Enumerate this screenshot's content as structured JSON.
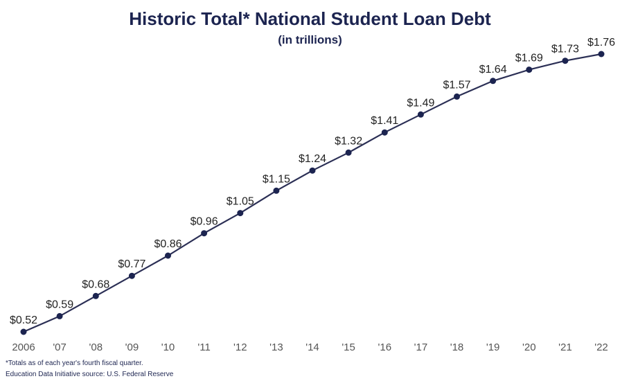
{
  "chart_data": {
    "type": "line",
    "title": "Historic Total* National Student Loan Debt",
    "subtitle": "(in trillions)",
    "categories": [
      "2006",
      "'07",
      "'08",
      "'09",
      "'10",
      "'11",
      "'12",
      "'13",
      "'14",
      "'15",
      "'16",
      "'17",
      "'18",
      "'19",
      "'20",
      "'21",
      "'22"
    ],
    "series": [
      {
        "values": [
          0.52,
          0.59,
          0.68,
          0.77,
          0.86,
          0.96,
          1.05,
          1.15,
          1.24,
          1.32,
          1.41,
          1.49,
          1.57,
          1.64,
          1.69,
          1.73,
          1.76
        ]
      }
    ],
    "data_labels": [
      "$0.52",
      "$0.59",
      "$0.68",
      "$0.77",
      "$0.86",
      "$0.96",
      "$1.05",
      "$1.15",
      "$1.24",
      "$1.32",
      "$1.41",
      "$1.49",
      "$1.57",
      "$1.64",
      "$1.69",
      "$1.73",
      "$1.76"
    ],
    "ylim": [
      0.52,
      1.76
    ],
    "grid": false,
    "legend": "none",
    "line_color": "#2b2f55",
    "marker_color": "#1c2450",
    "title_color": "#1c2450"
  },
  "footnotes": {
    "note": "*Totals as of each year's fourth fiscal quarter.",
    "source": "Education Data Initiative source: U.S. Federal Reserve"
  }
}
